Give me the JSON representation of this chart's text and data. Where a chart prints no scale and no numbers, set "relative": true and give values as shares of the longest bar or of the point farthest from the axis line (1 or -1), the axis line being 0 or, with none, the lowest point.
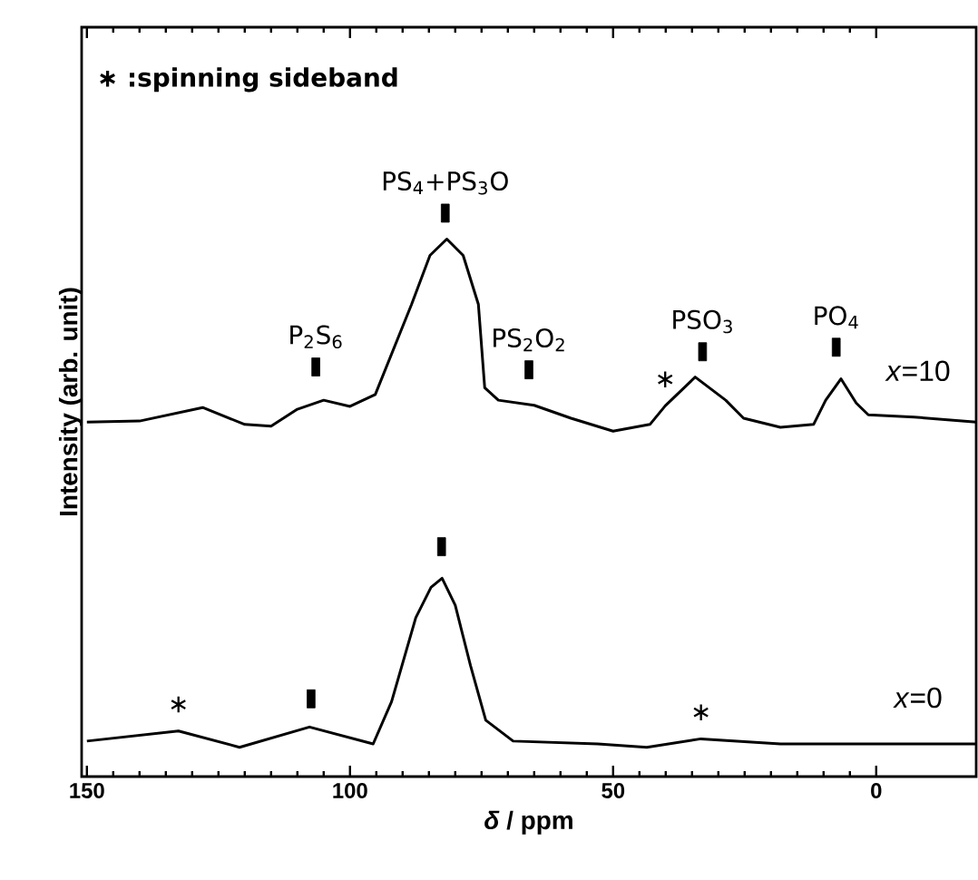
{
  "chart_data": {
    "type": "line",
    "relative": true,
    "xlabel": "*δ* / ppm",
    "ylabel": "Intensity (arb. unit)",
    "xlim": [
      151,
      -19
    ],
    "xticks": [
      150,
      100,
      50,
      0
    ],
    "grid": false,
    "legend": false,
    "marker": "none",
    "line_style": "solid",
    "series": [
      {
        "name": "*x*=10",
        "color": "#000000",
        "x": [
          150,
          140,
          128,
          120,
          115,
          110,
          105,
          100,
          95.2,
          88.3,
          84.8,
          81.6,
          78.5,
          75.6,
          74.4,
          71.8,
          65,
          58,
          50,
          43,
          40.1,
          34.4,
          28.6,
          25.2,
          18.2,
          11.9,
          9.6,
          6.7,
          3.8,
          1.5,
          -7.2,
          -19
        ],
        "values": [
          0.629,
          0.631,
          0.655,
          0.625,
          0.622,
          0.652,
          0.668,
          0.657,
          0.678,
          0.838,
          0.925,
          0.954,
          0.925,
          0.838,
          0.69,
          0.668,
          0.659,
          0.636,
          0.613,
          0.625,
          0.658,
          0.709,
          0.668,
          0.636,
          0.62,
          0.625,
          0.668,
          0.706,
          0.663,
          0.642,
          0.638,
          0.629
        ]
      },
      {
        "name": "*x*=0",
        "color": "#000000",
        "x": [
          150,
          132.6,
          121,
          107.7,
          95.6,
          92.1,
          87.5,
          84.6,
          82.5,
          80,
          77.1,
          74.2,
          69,
          52.9,
          43.6,
          33.3,
          18.2,
          -19
        ],
        "values": [
          0.063,
          0.081,
          0.052,
          0.088,
          0.058,
          0.133,
          0.282,
          0.336,
          0.352,
          0.304,
          0.197,
          0.1,
          0.063,
          0.058,
          0.052,
          0.067,
          0.058,
          0.058
        ]
      },
      {
        "type": "scatter",
        "marker": "square",
        "color": "#000000",
        "x": [
          106.5,
          81.9,
          66,
          33,
          7.6,
          107.4,
          82.6
        ],
        "values": [
          0.727,
          1.0,
          0.722,
          0.754,
          0.762,
          0.138,
          0.408
        ]
      }
    ],
    "annotations": [
      "∗ :spinning sideband",
      {
        "text": "P$_{2}$S$_{6}$",
        "x": 106.5,
        "y": 0.727
      },
      {
        "text": "PS$_{4}$+PS$_{3}$O",
        "x": 81.9,
        "y": 1.0
      },
      {
        "text": "PS$_{2}$O$_{2}$",
        "x": 66,
        "y": 0.722
      },
      {
        "text": "PSO$_{3}$",
        "x": 33,
        "y": 0.754
      },
      {
        "text": "PO$_{4}$",
        "x": 7.6,
        "y": 0.762
      },
      {
        "text": "∗",
        "x": 40.1,
        "y": 0.658
      },
      {
        "text": "∗",
        "x": 132.6,
        "y": 0.081
      },
      {
        "text": "∗",
        "x": 33.3,
        "y": 0.067
      }
    ]
  }
}
